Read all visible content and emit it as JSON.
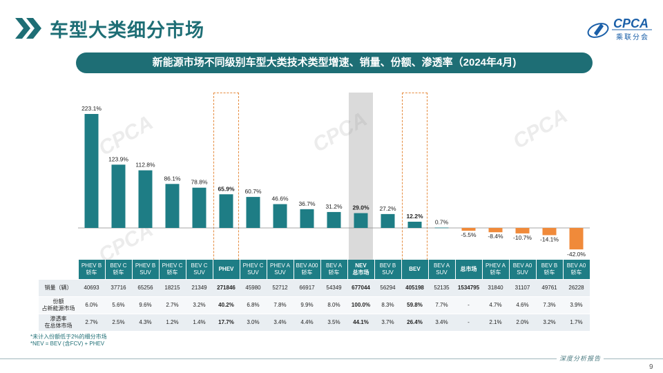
{
  "header": {
    "title": "车型大类细分市场",
    "logo_text": "CPCA",
    "logo_sub": "乘联分会"
  },
  "banner": {
    "title": "新能源市场不同级别车型大类技术类型增速、销量、份额、渗透率（2024年4月)"
  },
  "chart_data": {
    "type": "bar",
    "categories": [
      "PHEV B\n轿车",
      "BEV C\n轿车",
      "PHEV B\nSUV",
      "PHEV C\n轿车",
      "BEV C\nSUV",
      "PHEV",
      "PHEV C\nSUV",
      "PHEV A\nSUV",
      "BEV A00\n轿车",
      "BEV A\n轿车",
      "NEV\n总市场",
      "BEV B\nSUV",
      "BEV",
      "BEV A\nSUV",
      "总市场",
      "PHEV A\n轿车",
      "BEV A0\nSUV",
      "BEV B\n轿车",
      "BEV A0\n轿车"
    ],
    "values": [
      223.1,
      123.9,
      112.8,
      86.1,
      78.8,
      65.9,
      60.7,
      46.6,
      36.7,
      31.2,
      29.0,
      27.2,
      12.2,
      0.7,
      -5.5,
      -8.4,
      -10.7,
      -14.1,
      -42.0
    ],
    "value_labels": [
      "223.1%",
      "123.9%",
      "112.8%",
      "86.1%",
      "78.8%",
      "65.9%",
      "60.7%",
      "46.6%",
      "36.7%",
      "31.2%",
      "29.0%",
      "27.2%",
      "12.2%",
      "0.7%",
      "-5.5%",
      "-8.4%",
      "-10.7%",
      "-14.1%",
      "-42.0%"
    ],
    "bold_labels": [
      5,
      10,
      12
    ],
    "highlight_boxes": [
      5,
      12
    ],
    "shaded_column": 10,
    "colors": {
      "positive": "#1e7d85",
      "negative": "#f08a3a"
    },
    "table": {
      "rows": [
        {
          "label": "销量（辆）",
          "values": [
            "40693",
            "37716",
            "65256",
            "18215",
            "21349",
            "271846",
            "45980",
            "52712",
            "66917",
            "54349",
            "677044",
            "56294",
            "405198",
            "52135",
            "1534795",
            "31840",
            "31107",
            "49761",
            "26228"
          ]
        },
        {
          "label": "份额\n占新能源市场",
          "values": [
            "6.0%",
            "5.6%",
            "9.6%",
            "2.7%",
            "3.2%",
            "40.2%",
            "6.8%",
            "7.8%",
            "9.9%",
            "8.0%",
            "100.0%",
            "8.3%",
            "59.8%",
            "7.7%",
            "-",
            "4.7%",
            "4.6%",
            "7.3%",
            "3.9%"
          ]
        },
        {
          "label": "渗透率\n在总体市场",
          "values": [
            "2.7%",
            "2.5%",
            "4.3%",
            "1.2%",
            "1.4%",
            "17.7%",
            "3.0%",
            "3.4%",
            "4.4%",
            "3.5%",
            "44.1%",
            "3.7%",
            "26.4%",
            "3.4%",
            "-",
            "2.1%",
            "2.0%",
            "3.2%",
            "1.7%"
          ]
        }
      ]
    }
  },
  "footnotes": {
    "line1": "*未计入份额低于2%的细分市场",
    "line2": "*NEV = BEV (含FCV) + PHEV"
  },
  "footer": {
    "text": "深度分析报告",
    "page": "9"
  }
}
